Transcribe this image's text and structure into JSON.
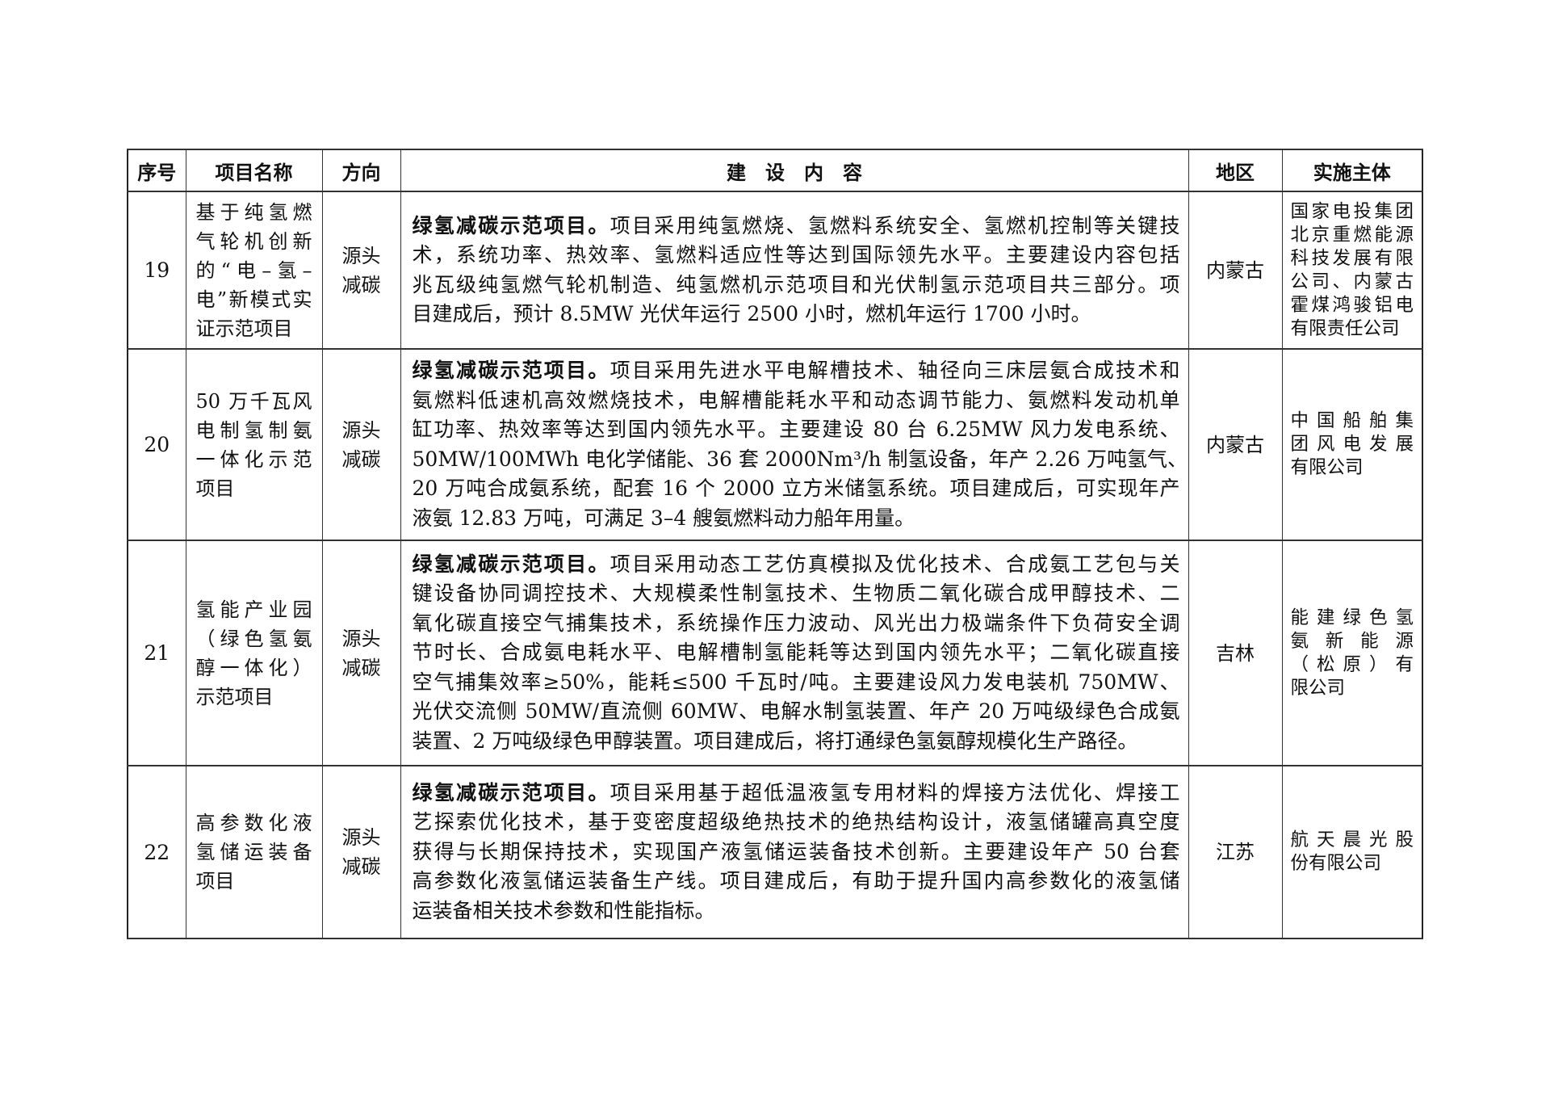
{
  "header": {
    "seq": "序号",
    "name": "项目名称",
    "direction": "方向",
    "content": "建　设　内　容",
    "region": "地区",
    "entity": "实施主体"
  },
  "rows": [
    {
      "seq": "19",
      "name": [
        "基于纯氢燃",
        "气轮机创新",
        "的“电–氢–",
        "电”新模式实",
        "证示范项目"
      ],
      "direction": [
        "源头",
        "减碳"
      ],
      "lead": "绿氢减碳示范项目。",
      "lines": [
        "项目采用纯氢燃烧、氢燃料系统安全、氢燃机控制等关键技",
        "术，系统功率、热效率、氢燃料适应性等达到国际领先水平。主要建设内容包括",
        "兆瓦级纯氢燃气轮机制造、纯氢燃机示范项目和光伏制氢示范项目共三部分。项",
        "目建成后，预计 8.5MW 光伏年运行 2500 小时，燃机年运行 1700 小时。"
      ],
      "region": "内蒙古",
      "entity": [
        "国家电投集团",
        "北京重燃能源",
        "科技发展有限",
        "公司、内蒙古",
        "霍煤鸿骏铝电",
        "有限责任公司"
      ]
    },
    {
      "seq": "20",
      "name": [
        "50 万千瓦风",
        "电制氢制氨",
        "一体化示范",
        "项目"
      ],
      "direction": [
        "源头",
        "减碳"
      ],
      "lead": "绿氢减碳示范项目。",
      "lines": [
        "项目采用先进水平电解槽技术、轴径向三床层氨合成技术和",
        "氨燃料低速机高效燃烧技术，电解槽能耗水平和动态调节能力、氨燃料发动机单",
        "缸功率、热效率等达到国内领先水平。主要建设 80 台 6.25MW 风力发电系统、",
        "50MW/100MWh 电化学储能、36 套 2000Nm³/h 制氢设备，年产 2.26 万吨氢气、",
        "20 万吨合成氨系统，配套 16 个 2000 立方米储氢系统。项目建成后，可实现年产",
        "液氨 12.83 万吨，可满足 3–4 艘氨燃料动力船年用量。"
      ],
      "region": "内蒙古",
      "entity": [
        "中国船舶集",
        "团风电发展",
        "有限公司"
      ]
    },
    {
      "seq": "21",
      "name": [
        "氢能产业园",
        "（绿色氢氨",
        "醇一体化）",
        "示范项目"
      ],
      "direction": [
        "源头",
        "减碳"
      ],
      "lead": "绿氢减碳示范项目。",
      "lines": [
        "项目采用动态工艺仿真模拟及优化技术、合成氨工艺包与关",
        "键设备协同调控技术、大规模柔性制氢技术、生物质二氧化碳合成甲醇技术、二",
        "氧化碳直接空气捕集技术，系统操作压力波动、风光出力极端条件下负荷安全调",
        "节时长、合成氨电耗水平、电解槽制氢能耗等达到国内领先水平；二氧化碳直接",
        "空气捕集效率≥50%，能耗≤500 千瓦时/吨。主要建设风力发电装机 750MW、",
        "光伏交流侧 50MW/直流侧 60MW、电解水制氢装置、年产 20 万吨级绿色合成氨",
        "装置、2 万吨级绿色甲醇装置。项目建成后，将打通绿色氢氨醇规模化生产路径。"
      ],
      "region": "吉林",
      "entity": [
        "能建绿色氢",
        "氨新能源",
        "（松原）有",
        "限公司"
      ]
    },
    {
      "seq": "22",
      "name": [
        "高参数化液",
        "氢储运装备",
        "项目"
      ],
      "direction": [
        "源头",
        "减碳"
      ],
      "lead": "绿氢减碳示范项目。",
      "lines": [
        "项目采用基于超低温液氢专用材料的焊接方法优化、焊接工",
        "艺探索优化技术，基于变密度超级绝热技术的绝热结构设计，液氢储罐高真空度",
        "获得与长期保持技术，实现国产液氢储运装备技术创新。主要建设年产 50 台套",
        "高参数化液氢储运装备生产线。项目建成后，有助于提升国内高参数化的液氢储",
        "运装备相关技术参数和性能指标。"
      ],
      "region": "江苏",
      "entity": [
        "航天晨光股",
        "份有限公司"
      ]
    }
  ]
}
